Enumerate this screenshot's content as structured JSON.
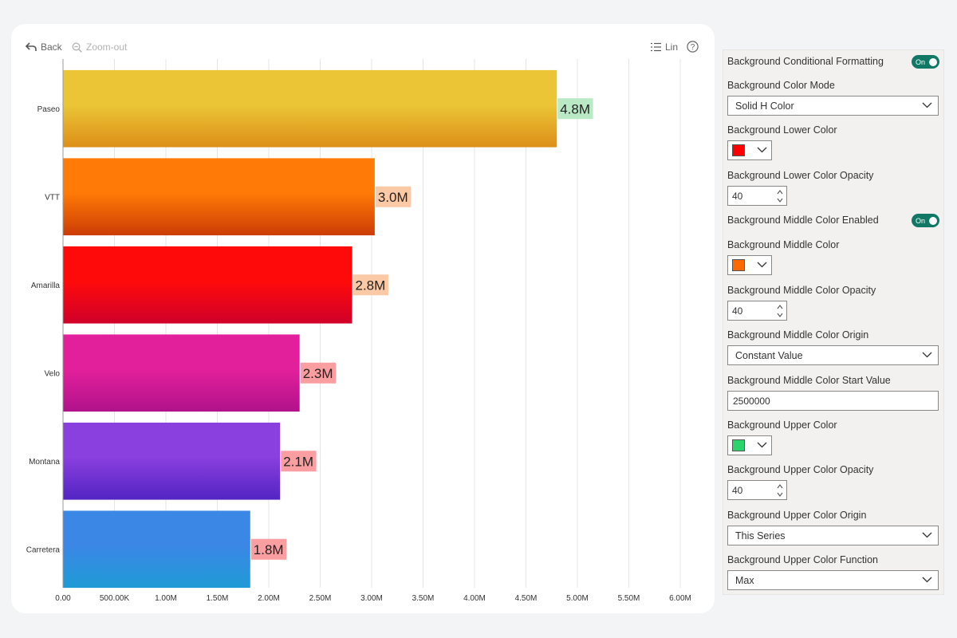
{
  "toolbar": {
    "back_label": "Back",
    "zoom_out_label": "Zoom-out",
    "scale_label": "Lin"
  },
  "chart_data": {
    "type": "bar",
    "orientation": "horizontal",
    "categories": [
      "Paseo",
      "VTT",
      "Amarilla",
      "Velo",
      "Montana",
      "Carretera"
    ],
    "values": [
      4800000,
      3030000,
      2810000,
      2300000,
      2110000,
      1820000
    ],
    "data_labels": [
      "4.8M",
      "3.0M",
      "2.8M",
      "2.3M",
      "2.1M",
      "1.8M"
    ],
    "bar_colors": [
      [
        "#ebc536",
        "#dd8f18"
      ],
      [
        "#ff7a06",
        "#cc3c05"
      ],
      [
        "#ff0a0a",
        "#d0002a"
      ],
      [
        "#e3209b",
        "#b0128a"
      ],
      [
        "#8a3fdf",
        "#5224c2"
      ],
      [
        "#3b87e6",
        "#1f9bd6"
      ]
    ],
    "label_backgrounds": [
      "#b9eac5",
      "#fbc9a6",
      "#fbc9a6",
      "#fa9ea1",
      "#fa9ea1",
      "#fa9ea1"
    ],
    "xlim": [
      0,
      6000000
    ],
    "x_ticks": [
      0,
      500000,
      1000000,
      1500000,
      2000000,
      2500000,
      3000000,
      3500000,
      4000000,
      4500000,
      5000000,
      5500000,
      6000000
    ],
    "x_tick_labels": [
      "0.00",
      "500.00K",
      "1.00M",
      "1.50M",
      "2.00M",
      "2.50M",
      "3.00M",
      "3.50M",
      "4.00M",
      "4.50M",
      "5.00M",
      "5.50M",
      "6.00M"
    ],
    "grid": true,
    "title": "",
    "xlabel": "",
    "ylabel": ""
  },
  "panel": {
    "bg_conditional_formatting_label": "Background Conditional Formatting",
    "bg_conditional_formatting_toggle": "On",
    "bg_color_mode_label": "Background Color Mode",
    "bg_color_mode_value": "Solid H Color",
    "bg_lower_color_label": "Background Lower Color",
    "bg_lower_color": "#ff0000",
    "bg_lower_opacity_label": "Background Lower Color Opacity",
    "bg_lower_opacity_value": "40",
    "bg_middle_enabled_label": "Background Middle Color Enabled",
    "bg_middle_enabled_toggle": "On",
    "bg_middle_color_label": "Background Middle Color",
    "bg_middle_color": "#ff6a00",
    "bg_middle_opacity_label": "Background Middle Color Opacity",
    "bg_middle_opacity_value": "40",
    "bg_middle_origin_label": "Background Middle Color Origin",
    "bg_middle_origin_value": "Constant Value",
    "bg_middle_start_label": "Background Middle Color Start Value",
    "bg_middle_start_value": "2500000",
    "bg_upper_color_label": "Background Upper Color",
    "bg_upper_color": "#2bd46c",
    "bg_upper_opacity_label": "Background Upper Color Opacity",
    "bg_upper_opacity_value": "40",
    "bg_upper_origin_label": "Background Upper Color Origin",
    "bg_upper_origin_value": "This Series",
    "bg_upper_function_label": "Background Upper Color Function",
    "bg_upper_function_value": "Max"
  }
}
